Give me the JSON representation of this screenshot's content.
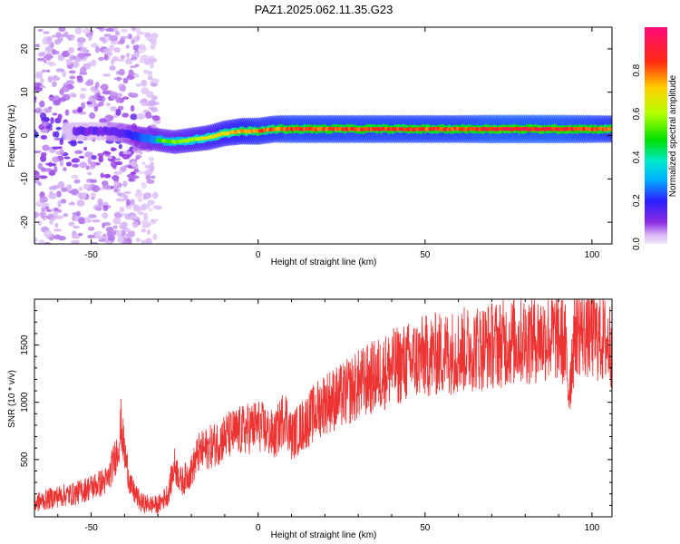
{
  "title": "PAZ1.2025.062.11.35.G23",
  "colors": {
    "line": "#ee3333",
    "axis": "#000000",
    "background": "#ffffff"
  },
  "chart_data": [
    {
      "type": "heatmap",
      "xlabel": "Height of straight line (km)",
      "ylabel": "Frequency (Hz)",
      "xlim": [
        -67,
        106
      ],
      "ylim": [
        -25,
        25
      ],
      "xticks": [
        -50,
        0,
        50,
        100
      ],
      "yticks": [
        -20,
        -10,
        0,
        10,
        20
      ],
      "colorbar": {
        "label": "Normalized spectral amplitude",
        "range": [
          0,
          1
        ],
        "ticks": [
          0.0,
          0.2,
          0.4,
          0.6,
          0.8
        ],
        "colormap": "rainbow (purple-blue-cyan-green-yellow-red-pink)"
      },
      "ridge": {
        "description": "dominant frequency ridge of normalized amplitude",
        "x": [
          -45,
          -40,
          -35,
          -30,
          -25,
          -20,
          -15,
          -10,
          -5,
          0,
          5,
          10,
          15,
          20,
          30,
          40,
          50,
          60,
          70,
          80,
          90,
          100,
          106
        ],
        "frequency": [
          1.0,
          0.5,
          -0.5,
          -1.0,
          -1.5,
          -1.0,
          -0.5,
          0.5,
          1.0,
          1.0,
          1.5,
          1.5,
          1.5,
          1.5,
          1.5,
          1.5,
          1.5,
          1.5,
          1.5,
          1.5,
          1.5,
          1.5,
          1.5
        ],
        "amplitude": [
          0.25,
          0.3,
          0.45,
          0.55,
          0.6,
          0.65,
          0.7,
          0.75,
          0.8,
          0.85,
          0.85,
          0.9,
          0.9,
          0.9,
          0.9,
          0.9,
          0.9,
          0.9,
          0.95,
          0.95,
          0.95,
          0.9,
          0.85
        ]
      },
      "noise_region": {
        "x_range": [
          -67,
          -30
        ],
        "frequency_range": [
          -25,
          25
        ]
      }
    },
    {
      "type": "line",
      "xlabel": "Height of straight line (km)",
      "ylabel": "SNR (10 * v/v)",
      "xlim": [
        -67,
        106
      ],
      "ylim": [
        0,
        1900
      ],
      "xticks": [
        -50,
        0,
        50,
        100
      ],
      "yticks": [
        500,
        1000,
        1500
      ],
      "series": [
        {
          "x": [
            -67,
            -60,
            -55,
            -50,
            -45,
            -42,
            -41,
            -40,
            -38,
            -35,
            -30,
            -27,
            -25,
            -23,
            -20,
            -18,
            -15,
            -12,
            -10,
            -5,
            0,
            5,
            8,
            10,
            15,
            20,
            25,
            30,
            40,
            50,
            60,
            70,
            80,
            90,
            92,
            93,
            95,
            100,
            106
          ],
          "y": [
            120,
            180,
            200,
            260,
            320,
            600,
            800,
            550,
            250,
            120,
            100,
            200,
            450,
            300,
            400,
            550,
            600,
            650,
            700,
            750,
            800,
            700,
            900,
            700,
            850,
            1000,
            1050,
            1150,
            1300,
            1400,
            1450,
            1500,
            1550,
            1580,
            1500,
            1100,
            1650,
            1600,
            1500
          ]
        }
      ]
    }
  ]
}
